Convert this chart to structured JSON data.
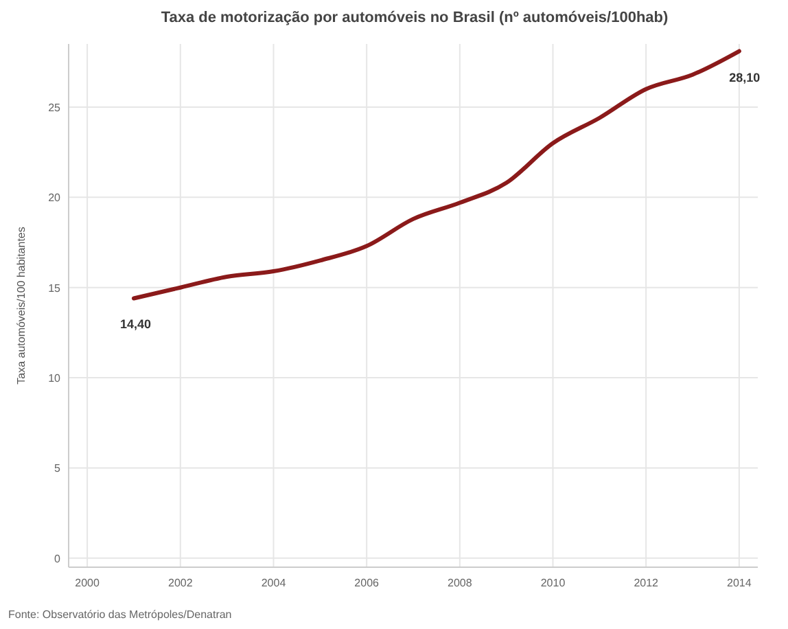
{
  "chart_data": {
    "type": "line",
    "title": "Taxa de motorização por automóveis no Brasil (nº automóveis/100hab)",
    "ylabel": "Taxa automóveis/100 habitantes",
    "annotations": [
      "Fonte: Observatório das Metrópoles/Denatran"
    ],
    "x": [
      2001,
      2002,
      2003,
      2004,
      2005,
      2006,
      2007,
      2008,
      2009,
      2010,
      2011,
      2012,
      2013,
      2014
    ],
    "series": [
      {
        "color": "#8b1a1a",
        "values": [
          14.4,
          15.0,
          15.6,
          15.9,
          16.5,
          17.3,
          18.8,
          19.7,
          20.8,
          23.0,
          24.4,
          26.0,
          26.8,
          28.1
        ],
        "value_labels": [
          "14,40",
          null,
          null,
          null,
          null,
          null,
          null,
          null,
          null,
          null,
          null,
          null,
          null,
          "28,10"
        ]
      }
    ],
    "xlim": [
      1999.6,
      2014.4
    ],
    "xticks": [
      2000,
      2002,
      2004,
      2006,
      2008,
      2010,
      2012,
      2014
    ],
    "ylim": [
      -0.5,
      28.5
    ],
    "yticks": [
      0,
      5,
      10,
      15,
      20,
      25
    ],
    "grid": true,
    "marker": "none",
    "line_style": "solid"
  }
}
